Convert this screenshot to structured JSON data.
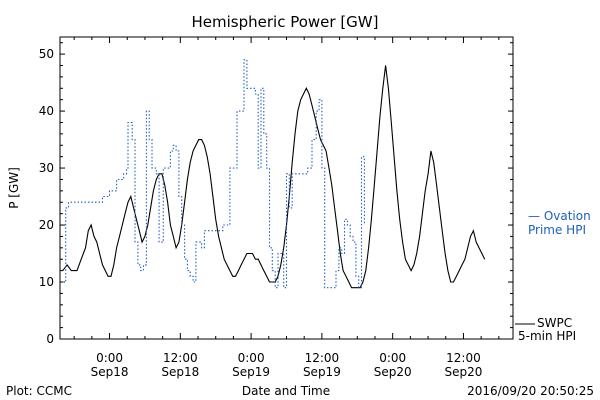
{
  "chart_data": {
    "type": "line",
    "title": "Hemispheric Power [GW]",
    "xlabel": "Date and Time",
    "ylabel": "P [GW]",
    "ylim": [
      0,
      53
    ],
    "xlim": [
      -0.35,
      2.85
    ],
    "y_ticks": [
      0,
      10,
      20,
      30,
      40,
      50
    ],
    "x_ticks": [
      {
        "x": 0.0,
        "time": "0:00",
        "date": "Sep18"
      },
      {
        "x": 0.5,
        "time": "12:00",
        "date": "Sep18"
      },
      {
        "x": 1.0,
        "time": "0:00",
        "date": "Sep19"
      },
      {
        "x": 1.5,
        "time": "12:00",
        "date": "Sep19"
      },
      {
        "x": 2.0,
        "time": "0:00",
        "date": "Sep20"
      },
      {
        "x": 2.5,
        "time": "12:00",
        "date": "Sep20"
      }
    ],
    "x_unit_note": "x values are days since Sep18 0:00",
    "series": [
      {
        "name": "SWPC 5-min HPI",
        "style": "solid",
        "color": "#000000",
        "points": [
          [
            -0.33,
            12
          ],
          [
            -0.3,
            13
          ],
          [
            -0.27,
            12
          ],
          [
            -0.23,
            12
          ],
          [
            -0.2,
            14
          ],
          [
            -0.17,
            16
          ],
          [
            -0.15,
            19
          ],
          [
            -0.13,
            20
          ],
          [
            -0.11,
            18
          ],
          [
            -0.09,
            17
          ],
          [
            -0.07,
            15
          ],
          [
            -0.05,
            13
          ],
          [
            -0.03,
            12
          ],
          [
            -0.01,
            11
          ],
          [
            0.01,
            11
          ],
          [
            0.03,
            13
          ],
          [
            0.05,
            16
          ],
          [
            0.07,
            18
          ],
          [
            0.09,
            20
          ],
          [
            0.11,
            22
          ],
          [
            0.13,
            24
          ],
          [
            0.15,
            25
          ],
          [
            0.17,
            23
          ],
          [
            0.19,
            21
          ],
          [
            0.21,
            19
          ],
          [
            0.23,
            17
          ],
          [
            0.25,
            18
          ],
          [
            0.27,
            20
          ],
          [
            0.29,
            23
          ],
          [
            0.31,
            26
          ],
          [
            0.33,
            28
          ],
          [
            0.35,
            29
          ],
          [
            0.37,
            29
          ],
          [
            0.39,
            27
          ],
          [
            0.41,
            24
          ],
          [
            0.43,
            20
          ],
          [
            0.45,
            18
          ],
          [
            0.47,
            16
          ],
          [
            0.49,
            17
          ],
          [
            0.51,
            20
          ],
          [
            0.53,
            24
          ],
          [
            0.55,
            28
          ],
          [
            0.57,
            31
          ],
          [
            0.59,
            33
          ],
          [
            0.61,
            34
          ],
          [
            0.63,
            35
          ],
          [
            0.65,
            35
          ],
          [
            0.67,
            34
          ],
          [
            0.69,
            32
          ],
          [
            0.71,
            29
          ],
          [
            0.73,
            25
          ],
          [
            0.75,
            21
          ],
          [
            0.77,
            18
          ],
          [
            0.79,
            16
          ],
          [
            0.81,
            14
          ],
          [
            0.83,
            13
          ],
          [
            0.85,
            12
          ],
          [
            0.87,
            11
          ],
          [
            0.89,
            11
          ],
          [
            0.91,
            12
          ],
          [
            0.93,
            13
          ],
          [
            0.95,
            14
          ],
          [
            0.97,
            15
          ],
          [
            0.99,
            15
          ],
          [
            1.01,
            15
          ],
          [
            1.03,
            14
          ],
          [
            1.05,
            14
          ],
          [
            1.07,
            13
          ],
          [
            1.09,
            12
          ],
          [
            1.11,
            11
          ],
          [
            1.13,
            10
          ],
          [
            1.15,
            10
          ],
          [
            1.17,
            10
          ],
          [
            1.19,
            11
          ],
          [
            1.21,
            13
          ],
          [
            1.23,
            16
          ],
          [
            1.25,
            20
          ],
          [
            1.27,
            25
          ],
          [
            1.29,
            31
          ],
          [
            1.31,
            36
          ],
          [
            1.33,
            40
          ],
          [
            1.35,
            42
          ],
          [
            1.37,
            43
          ],
          [
            1.39,
            44
          ],
          [
            1.41,
            43
          ],
          [
            1.43,
            41
          ],
          [
            1.45,
            39
          ],
          [
            1.47,
            37
          ],
          [
            1.49,
            35
          ],
          [
            1.51,
            34
          ],
          [
            1.53,
            33
          ],
          [
            1.55,
            30
          ],
          [
            1.57,
            27
          ],
          [
            1.59,
            23
          ],
          [
            1.61,
            19
          ],
          [
            1.63,
            15
          ],
          [
            1.65,
            12
          ],
          [
            1.67,
            11
          ],
          [
            1.69,
            10
          ],
          [
            1.71,
            9
          ],
          [
            1.73,
            9
          ],
          [
            1.75,
            9
          ],
          [
            1.77,
            9
          ],
          [
            1.79,
            10
          ],
          [
            1.81,
            12
          ],
          [
            1.83,
            16
          ],
          [
            1.85,
            21
          ],
          [
            1.87,
            27
          ],
          [
            1.89,
            33
          ],
          [
            1.91,
            39
          ],
          [
            1.93,
            44
          ],
          [
            1.95,
            48
          ],
          [
            1.97,
            44
          ],
          [
            1.99,
            38
          ],
          [
            2.01,
            32
          ],
          [
            2.03,
            26
          ],
          [
            2.05,
            21
          ],
          [
            2.07,
            17
          ],
          [
            2.09,
            14
          ],
          [
            2.11,
            13
          ],
          [
            2.13,
            12
          ],
          [
            2.15,
            13
          ],
          [
            2.17,
            15
          ],
          [
            2.19,
            18
          ],
          [
            2.21,
            22
          ],
          [
            2.23,
            26
          ],
          [
            2.25,
            29
          ],
          [
            2.27,
            33
          ],
          [
            2.29,
            31
          ],
          [
            2.31,
            27
          ],
          [
            2.33,
            23
          ],
          [
            2.35,
            19
          ],
          [
            2.37,
            15
          ],
          [
            2.39,
            12
          ],
          [
            2.41,
            10
          ],
          [
            2.43,
            10
          ],
          [
            2.45,
            11
          ],
          [
            2.47,
            12
          ],
          [
            2.49,
            13
          ],
          [
            2.51,
            14
          ],
          [
            2.53,
            16
          ],
          [
            2.55,
            18
          ],
          [
            2.57,
            19
          ],
          [
            2.59,
            17
          ],
          [
            2.61,
            16
          ],
          [
            2.63,
            15
          ],
          [
            2.65,
            14
          ]
        ]
      },
      {
        "name": "Ovation Prime HPI",
        "style": "dotted",
        "color": "#1f5fbf",
        "points": [
          [
            -0.33,
            10
          ],
          [
            -0.31,
            23
          ],
          [
            -0.29,
            24
          ],
          [
            -0.25,
            24
          ],
          [
            -0.2,
            24
          ],
          [
            -0.15,
            24
          ],
          [
            -0.1,
            24
          ],
          [
            -0.05,
            25
          ],
          [
            0.0,
            26
          ],
          [
            0.05,
            28
          ],
          [
            0.1,
            29
          ],
          [
            0.12,
            30
          ],
          [
            0.13,
            38
          ],
          [
            0.16,
            35
          ],
          [
            0.18,
            17
          ],
          [
            0.2,
            13
          ],
          [
            0.22,
            12
          ],
          [
            0.24,
            13
          ],
          [
            0.26,
            40
          ],
          [
            0.28,
            35
          ],
          [
            0.3,
            30
          ],
          [
            0.33,
            29
          ],
          [
            0.35,
            17
          ],
          [
            0.38,
            30
          ],
          [
            0.41,
            30
          ],
          [
            0.43,
            33
          ],
          [
            0.45,
            34
          ],
          [
            0.47,
            33
          ],
          [
            0.49,
            25
          ],
          [
            0.51,
            20
          ],
          [
            0.53,
            14
          ],
          [
            0.55,
            12
          ],
          [
            0.57,
            11
          ],
          [
            0.59,
            10
          ],
          [
            0.61,
            17
          ],
          [
            0.63,
            17
          ],
          [
            0.65,
            16
          ],
          [
            0.67,
            19
          ],
          [
            0.7,
            19
          ],
          [
            0.75,
            19
          ],
          [
            0.8,
            20
          ],
          [
            0.85,
            30
          ],
          [
            0.9,
            40
          ],
          [
            0.95,
            49
          ],
          [
            0.97,
            44
          ],
          [
            1.0,
            44
          ],
          [
            1.03,
            43
          ],
          [
            1.05,
            30
          ],
          [
            1.07,
            44
          ],
          [
            1.09,
            36
          ],
          [
            1.11,
            30
          ],
          [
            1.13,
            16
          ],
          [
            1.15,
            12
          ],
          [
            1.17,
            9
          ],
          [
            1.19,
            15
          ],
          [
            1.21,
            15
          ],
          [
            1.23,
            9
          ],
          [
            1.25,
            29
          ],
          [
            1.27,
            23
          ],
          [
            1.29,
            29
          ],
          [
            1.33,
            29
          ],
          [
            1.37,
            29
          ],
          [
            1.4,
            30
          ],
          [
            1.43,
            35
          ],
          [
            1.46,
            40
          ],
          [
            1.48,
            42
          ],
          [
            1.5,
            30
          ],
          [
            1.52,
            9
          ],
          [
            1.54,
            9
          ],
          [
            1.56,
            9
          ],
          [
            1.58,
            9
          ],
          [
            1.6,
            12
          ],
          [
            1.62,
            16
          ],
          [
            1.64,
            15
          ],
          [
            1.66,
            21
          ],
          [
            1.68,
            20
          ],
          [
            1.7,
            18
          ],
          [
            1.72,
            17
          ],
          [
            1.74,
            11
          ],
          [
            1.76,
            9
          ],
          [
            1.78,
            32
          ],
          [
            1.8,
            20
          ]
        ]
      }
    ],
    "legend": [
      {
        "label": "— Ovation Prime HPI",
        "line1": "— Ovation",
        "line2": "Prime HPI",
        "color": "#1f5fbf"
      },
      {
        "label": "SWPC 5-min HPI",
        "line1": "SWPC",
        "line2": "5-min HPI",
        "color": "#000000"
      }
    ],
    "legend_position": "right"
  },
  "footer": {
    "left": "Plot: CCMC",
    "right": "2016/09/20 20:50:25"
  }
}
